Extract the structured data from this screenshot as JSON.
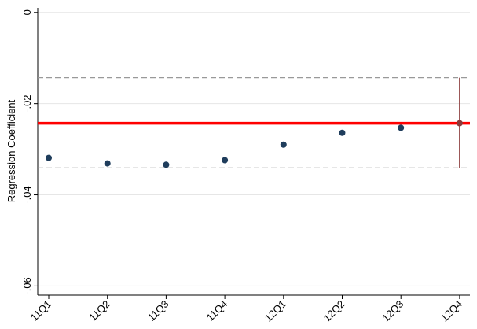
{
  "chart_data": {
    "type": "scatter",
    "y_label": "Regression Coefficient",
    "categories": [
      "11Q1",
      "11Q2",
      "11Q3",
      "11Q4",
      "12Q1",
      "12Q2",
      "12Q3",
      "12Q4"
    ],
    "values": [
      -0.0319,
      -0.0331,
      -0.0334,
      -0.0324,
      -0.029,
      -0.0264,
      -0.0253,
      -0.0243
    ],
    "colors": [
      "#1f3d5c",
      "#1f3d5c",
      "#1f3d5c",
      "#1f3d5c",
      "#1f3d5c",
      "#1f3d5c",
      "#1f3d5c",
      "#8b3a3a"
    ],
    "error_bar": {
      "index": 7,
      "low": -0.0341,
      "high": -0.0143,
      "color": "#8b3a3a"
    },
    "reference_line": {
      "value": -0.0243,
      "color": "#ff0000"
    },
    "dashed_lines": [
      -0.0143,
      -0.0341
    ],
    "ylim": [
      -0.062,
      0.001
    ],
    "yticks": [
      0,
      {
        "value": -0.02,
        "label": "-.02"
      },
      {
        "value": -0.04,
        "label": "-.04"
      },
      {
        "value": -0.06,
        "label": "-.06"
      }
    ],
    "grid": true
  }
}
